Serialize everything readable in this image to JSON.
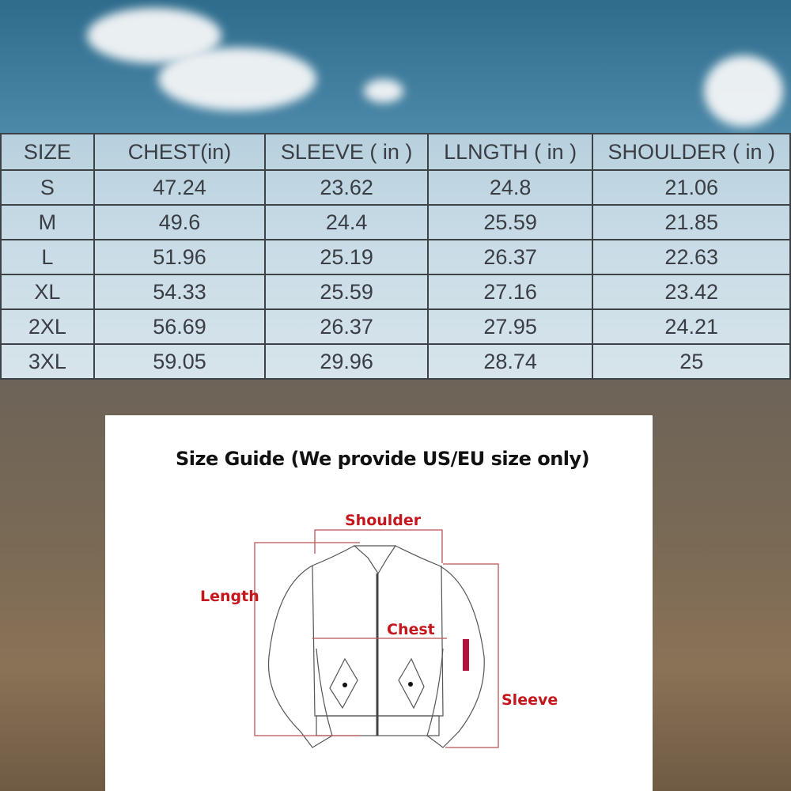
{
  "size_table": {
    "headers": [
      "SIZE",
      "CHEST(in)",
      "SLEEVE ( in )",
      "LLNGTH ( in )",
      "SHOULDER ( in )"
    ],
    "rows": [
      [
        "S",
        "47.24",
        "23.62",
        "24.8",
        "21.06"
      ],
      [
        "M",
        "49.6",
        "24.4",
        "25.59",
        "21.85"
      ],
      [
        "L",
        "51.96",
        "25.19",
        "26.37",
        "22.63"
      ],
      [
        "XL",
        "54.33",
        "25.59",
        "27.16",
        "23.42"
      ],
      [
        "2XL",
        "56.69",
        "26.37",
        "27.95",
        "24.21"
      ],
      [
        "3XL",
        "59.05",
        "29.96",
        "28.74",
        "25"
      ]
    ]
  },
  "size_guide": {
    "title": "Size Guide  (We provide US/EU size only)",
    "labels": {
      "shoulder": "Shoulder",
      "length": "Length",
      "chest": "Chest",
      "sleeve": "Sleeve"
    },
    "label_color": "#c4161c"
  }
}
